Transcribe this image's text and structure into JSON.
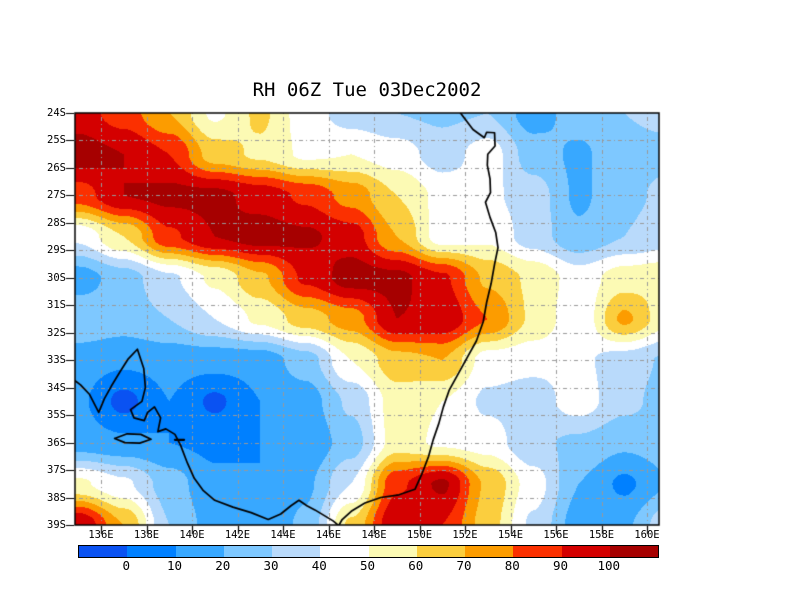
{
  "title": "RH 06Z Tue 03Dec2002",
  "chart_data": {
    "type": "heatmap",
    "title": "RH 06Z Tue 03Dec2002",
    "variable": "RH",
    "x_axis": {
      "tick_labels": [
        "136E",
        "138E",
        "140E",
        "142E",
        "144E",
        "146E",
        "148E",
        "150E",
        "152E",
        "154E",
        "156E",
        "158E",
        "160E"
      ],
      "tick_lons": [
        136,
        138,
        140,
        142,
        144,
        146,
        148,
        150,
        152,
        154,
        156,
        158,
        160
      ]
    },
    "y_axis": {
      "tick_labels": [
        "24S",
        "25S",
        "26S",
        "27S",
        "28S",
        "29S",
        "30S",
        "31S",
        "32S",
        "33S",
        "34S",
        "35S",
        "36S",
        "37S",
        "38S",
        "39S"
      ],
      "tick_lats": [
        24,
        25,
        26,
        27,
        28,
        29,
        30,
        31,
        32,
        33,
        34,
        35,
        36,
        37,
        38,
        39
      ]
    },
    "lon_range": [
      134.857,
      160.527
    ],
    "lat_range": [
      24,
      39
    ],
    "grid_lines": {
      "on": true,
      "color": "#999999",
      "style": "dash-dot",
      "lon_step": 2,
      "lat_step": 1
    },
    "levels": [
      0,
      10,
      20,
      30,
      40,
      50,
      60,
      70,
      80,
      90,
      100
    ],
    "band_colors": [
      "#0a52f2",
      "#0080ff",
      "#38a8ff",
      "#7ec8ff",
      "#b9dafb",
      "#ffffff",
      "#fcfab4",
      "#fbce3e",
      "#fc9c00",
      "#fb3000",
      "#d40000",
      "#a60000"
    ],
    "colorbar": {
      "labels": [
        "0",
        "10",
        "20",
        "30",
        "40",
        "50",
        "60",
        "70",
        "80",
        "90",
        "100"
      ]
    },
    "axis_color": "#000000",
    "field_grid": {
      "lons": [
        135,
        137,
        139,
        141,
        143,
        145,
        147,
        149,
        151,
        153,
        155,
        157,
        159,
        161
      ],
      "lats": [
        24,
        25.5,
        27,
        28.5,
        30,
        31.5,
        33,
        34.5,
        36,
        37.5,
        39
      ],
      "rh_values": [
        [
          95,
          85,
          70,
          48,
          62,
          45,
          35,
          30,
          28,
          30,
          15,
          25,
          30,
          32
        ],
        [
          105,
          100,
          90,
          65,
          58,
          48,
          50,
          45,
          35,
          45,
          25,
          18,
          28,
          28
        ],
        [
          85,
          100,
          103,
          103,
          96,
          88,
          76,
          60,
          47,
          42,
          35,
          18,
          28,
          32
        ],
        [
          42,
          60,
          88,
          100,
          105,
          102,
          95,
          70,
          45,
          48,
          35,
          22,
          30,
          35
        ],
        [
          15,
          25,
          38,
          52,
          68,
          92,
          105,
          103,
          92,
          68,
          58,
          45,
          55,
          58
        ],
        [
          28,
          25,
          30,
          40,
          52,
          65,
          75,
          100,
          98,
          80,
          58,
          42,
          72,
          52
        ],
        [
          15,
          12,
          14,
          14,
          14,
          25,
          50,
          66,
          70,
          45,
          43,
          42,
          35,
          28
        ],
        [
          12,
          -3,
          10,
          -2,
          10,
          15,
          32,
          55,
          50,
          38,
          35,
          45,
          33,
          25
        ],
        [
          15,
          12,
          10,
          8,
          10,
          12,
          25,
          55,
          48,
          45,
          32,
          28,
          22,
          25
        ],
        [
          52,
          42,
          25,
          12,
          10,
          18,
          40,
          88,
          102,
          68,
          45,
          20,
          8,
          20
        ],
        [
          100,
          70,
          30,
          15,
          12,
          22,
          62,
          100,
          90,
          65,
          38,
          15,
          18,
          38
        ]
      ]
    },
    "coastline": {
      "color": "#000000",
      "mainland": [
        [
          151.8,
          24.0
        ],
        [
          152.35,
          24.6
        ],
        [
          152.85,
          24.9
        ],
        [
          152.95,
          24.7
        ],
        [
          153.3,
          24.72
        ],
        [
          153.32,
          25.2
        ],
        [
          153.0,
          25.5
        ],
        [
          152.98,
          25.9
        ],
        [
          153.1,
          26.4
        ],
        [
          153.12,
          26.9
        ],
        [
          152.9,
          27.25
        ],
        [
          153.1,
          27.8
        ],
        [
          153.35,
          28.35
        ],
        [
          153.45,
          28.9
        ],
        [
          153.3,
          29.5
        ],
        [
          153.15,
          30.2
        ],
        [
          152.95,
          30.9
        ],
        [
          152.8,
          31.6
        ],
        [
          152.5,
          32.3
        ],
        [
          152.1,
          32.9
        ],
        [
          151.7,
          33.5
        ],
        [
          151.3,
          34.1
        ],
        [
          151.05,
          34.7
        ],
        [
          150.85,
          35.3
        ],
        [
          150.6,
          35.9
        ],
        [
          150.4,
          36.5
        ],
        [
          150.1,
          37.15
        ],
        [
          149.8,
          37.7
        ],
        [
          149.1,
          37.9
        ],
        [
          148.3,
          38.0
        ],
        [
          147.6,
          38.2
        ],
        [
          147.0,
          38.5
        ],
        [
          146.6,
          38.8
        ],
        [
          146.45,
          39.02
        ],
        [
          146.2,
          38.85
        ],
        [
          145.8,
          38.65
        ],
        [
          145.4,
          38.45
        ],
        [
          145.05,
          38.3
        ],
        [
          144.7,
          38.1
        ],
        [
          144.35,
          38.3
        ],
        [
          143.9,
          38.6
        ],
        [
          143.35,
          38.8
        ],
        [
          142.6,
          38.55
        ],
        [
          141.8,
          38.35
        ],
        [
          141.0,
          38.1
        ],
        [
          140.5,
          37.75
        ],
        [
          140.1,
          37.3
        ],
        [
          139.8,
          36.75
        ],
        [
          139.5,
          36.1
        ],
        [
          139.25,
          35.7
        ],
        [
          138.85,
          35.5
        ],
        [
          138.5,
          35.6
        ],
        [
          138.62,
          35.1
        ],
        [
          138.35,
          34.7
        ],
        [
          138.05,
          34.9
        ],
        [
          137.9,
          35.2
        ],
        [
          137.45,
          35.1
        ],
        [
          137.3,
          34.8
        ],
        [
          137.8,
          34.5
        ],
        [
          137.95,
          34.0
        ],
        [
          137.88,
          33.3
        ],
        [
          137.6,
          32.6
        ],
        [
          137.2,
          32.95
        ],
        [
          136.85,
          33.4
        ],
        [
          136.45,
          33.95
        ],
        [
          136.15,
          34.4
        ],
        [
          135.9,
          34.9
        ],
        [
          135.5,
          34.25
        ],
        [
          135.1,
          33.9
        ],
        [
          134.86,
          33.75
        ]
      ],
      "kangaroo_island": [
        [
          136.6,
          35.85
        ],
        [
          137.15,
          35.68
        ],
        [
          137.75,
          35.7
        ],
        [
          138.2,
          35.88
        ],
        [
          137.7,
          36.02
        ],
        [
          137.05,
          36.0
        ],
        [
          136.6,
          35.85
        ]
      ],
      "island_dash": [
        [
          139.25,
          35.9
        ],
        [
          139.65,
          35.9
        ]
      ]
    }
  }
}
